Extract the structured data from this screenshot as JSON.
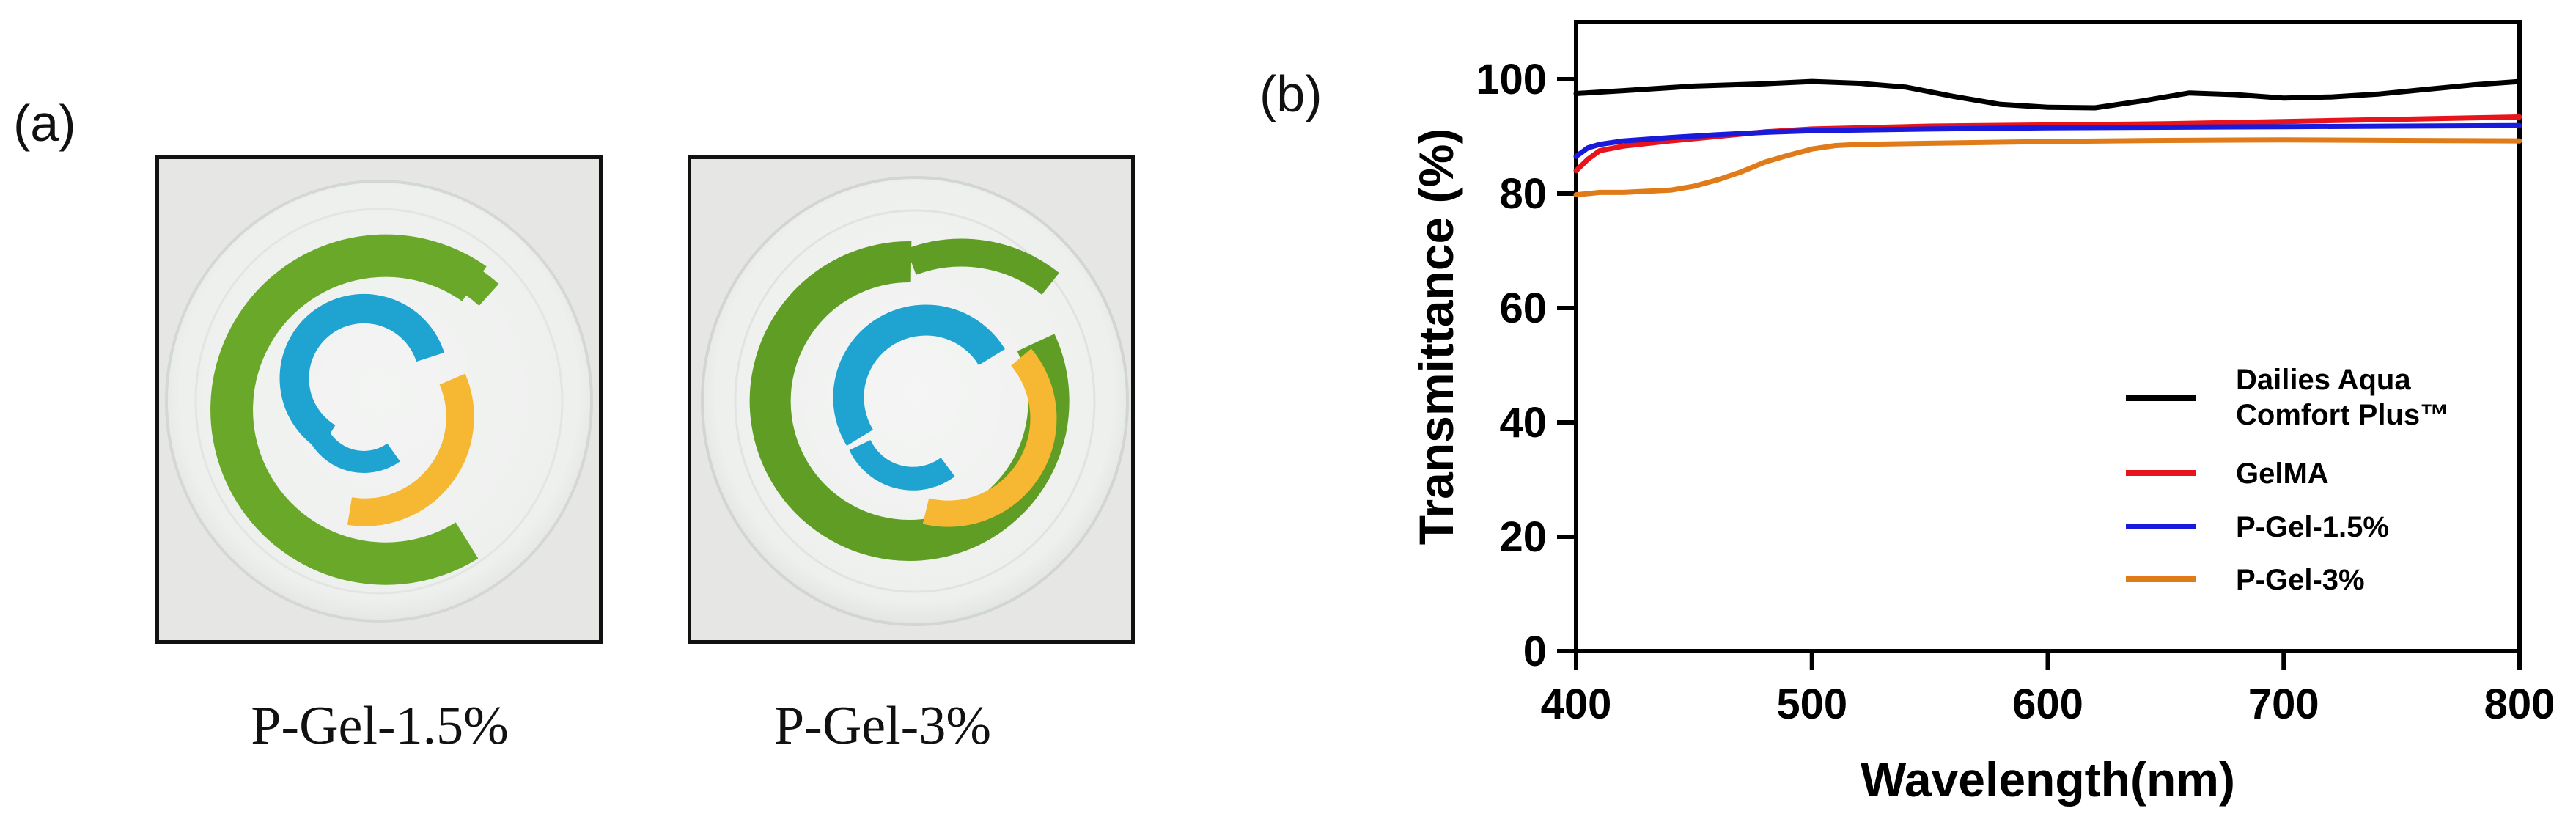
{
  "panel_a": {
    "label": "(a)",
    "photos": [
      {
        "caption": "P-Gel-1.5%"
      },
      {
        "caption": "P-Gel-3%"
      }
    ],
    "colors": {
      "green": "#6aa82a",
      "blue": "#1fa3d1",
      "yellow": "#f6b832",
      "gel": "#eef0ee"
    }
  },
  "panel_b": {
    "label": "(b)"
  },
  "chart_data": {
    "type": "line",
    "xlabel": "Wavelength(nm)",
    "ylabel": "Transmittance  (%)",
    "xlim": [
      400,
      800
    ],
    "ylim": [
      0,
      110
    ],
    "xticks": [
      "400",
      "500",
      "600",
      "700",
      "800"
    ],
    "yticks": [
      "0",
      "20",
      "40",
      "60",
      "80",
      "100"
    ],
    "legend_position": "bottom-right",
    "series": [
      {
        "name": "Dailies Aqua Comfort Plus™",
        "legend_lines": [
          "Dailies Aqua",
          "Comfort Plus™"
        ],
        "color": "#000000",
        "x": [
          400,
          420,
          450,
          480,
          500,
          520,
          540,
          560,
          580,
          600,
          620,
          640,
          660,
          680,
          700,
          720,
          740,
          760,
          780,
          800
        ],
        "y": [
          97.5,
          98.0,
          98.8,
          99.2,
          99.6,
          99.3,
          98.6,
          97.0,
          95.6,
          95.1,
          95.0,
          96.2,
          97.6,
          97.3,
          96.7,
          96.9,
          97.4,
          98.2,
          99.0,
          99.6
        ]
      },
      {
        "name": "GelMA",
        "color": "#e8131b",
        "x": [
          400,
          405,
          410,
          420,
          440,
          460,
          480,
          500,
          550,
          600,
          650,
          700,
          750,
          800
        ],
        "y": [
          84.0,
          86.0,
          87.5,
          88.3,
          89.2,
          90.0,
          90.8,
          91.3,
          91.8,
          92.0,
          92.2,
          92.6,
          93.0,
          93.4
        ]
      },
      {
        "name": "P-Gel-1.5%",
        "color": "#1a1adc",
        "x": [
          400,
          405,
          410,
          420,
          440,
          460,
          480,
          500,
          550,
          600,
          650,
          700,
          750,
          800
        ],
        "y": [
          86.5,
          88.0,
          88.6,
          89.2,
          89.8,
          90.3,
          90.7,
          91.0,
          91.3,
          91.5,
          91.6,
          91.7,
          91.8,
          91.9
        ]
      },
      {
        "name": "P-Gel-3%",
        "color": "#e07b1a",
        "x": [
          400,
          410,
          420,
          440,
          450,
          460,
          470,
          480,
          490,
          500,
          510,
          520,
          550,
          600,
          650,
          700,
          750,
          800
        ],
        "y": [
          79.8,
          80.2,
          80.2,
          80.6,
          81.3,
          82.4,
          83.8,
          85.5,
          86.7,
          87.8,
          88.4,
          88.6,
          88.8,
          89.1,
          89.3,
          89.4,
          89.3,
          89.2
        ]
      }
    ]
  }
}
